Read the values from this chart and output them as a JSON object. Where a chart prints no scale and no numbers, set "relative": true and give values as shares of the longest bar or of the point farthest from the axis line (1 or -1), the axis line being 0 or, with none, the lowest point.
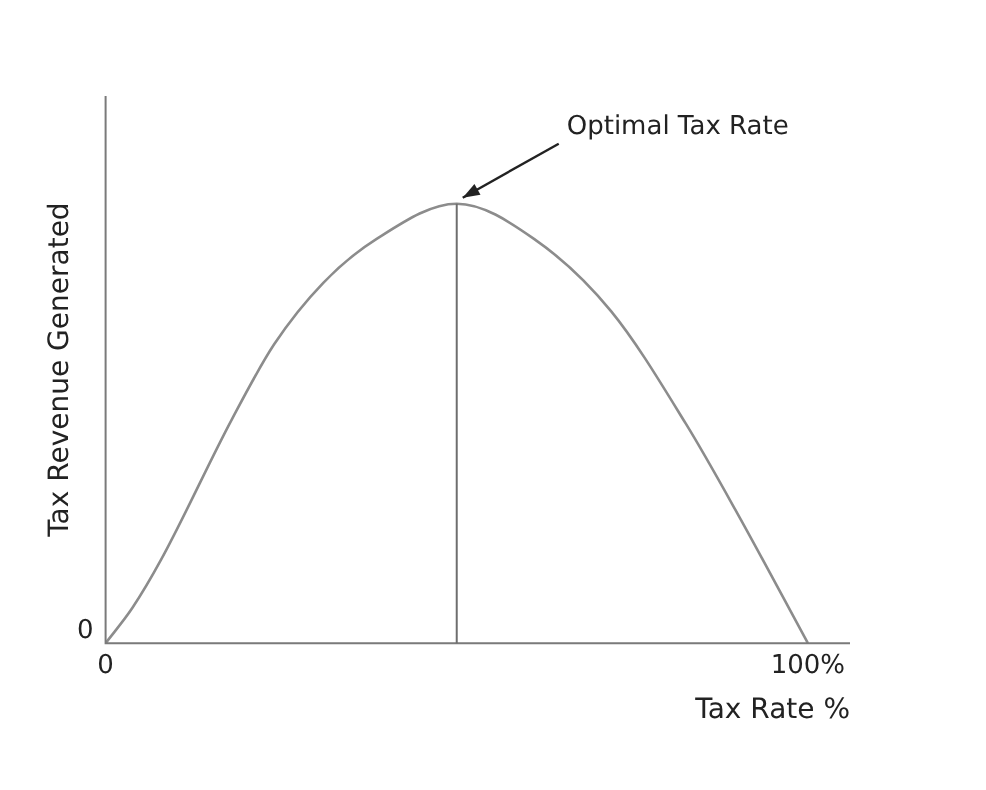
{
  "chart_data": {
    "type": "line",
    "xlabel": "Tax Rate %",
    "ylabel": "Tax Revenue Generated",
    "relative": true,
    "x": [
      0,
      3.8,
      7.9,
      18,
      24,
      31,
      38.6,
      50,
      61,
      72,
      82.6,
      89.8,
      100
    ],
    "series": [
      {
        "color": "#8c8c8c",
        "values": [
          0,
          0.08,
          0.19,
          0.51,
          0.68,
          0.82,
          0.92,
          1,
          0.92,
          0.755,
          0.5,
          0.3,
          0
        ]
      }
    ],
    "xlim": [
      0,
      106
    ],
    "xticks": [
      0,
      {
        "value": 100,
        "label": "100%"
      }
    ],
    "ref_lines": [
      {
        "axis": "x",
        "value": 50,
        "color": "#6e6e6e"
      }
    ],
    "annotations": [
      "0",
      {
        "text": "Optimal Tax Rate",
        "x": 50,
        "y": 1
      }
    ],
    "grid": false,
    "legend": false,
    "marker": "none",
    "line_style": "solid"
  }
}
